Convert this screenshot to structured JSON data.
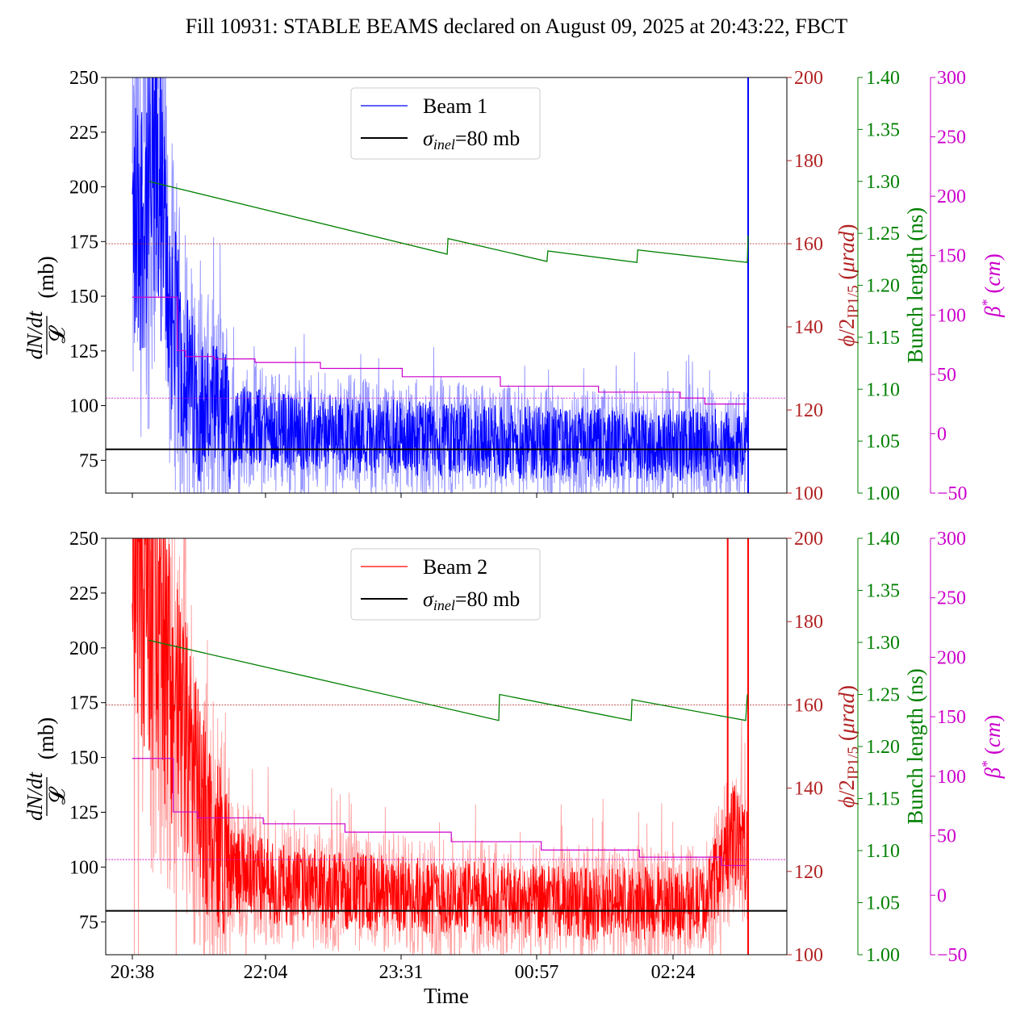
{
  "title": "Fill 10931: STABLE BEAMS declared on August 09, 2025 at 20:43:22, FBCT",
  "colors": {
    "beam1": "#0000ff",
    "beam1_light": "#8080ff",
    "beam2": "#ff0000",
    "beam2_light": "#ff9090",
    "crossing": "#b22222",
    "bunch": "#008000",
    "beta": "#cc00cc",
    "sigma": "#000000"
  },
  "chart_data": [
    {
      "type": "line",
      "panel": "top",
      "x_axis": {
        "label": "",
        "ticks": [
          "20:38",
          "22:04",
          "23:31",
          "00:57",
          "02:24"
        ],
        "tick_labels_visible": false
      },
      "y_left": {
        "label": "dN/dt / 𝓛 (mb)",
        "range": [
          60,
          250
        ],
        "ticks": [
          75,
          100,
          125,
          150,
          175,
          200,
          225,
          250
        ]
      },
      "y_crossing": {
        "label": "ϕ/2IP1/5 (μrad)",
        "range": [
          100,
          200
        ],
        "ticks": [
          100,
          120,
          140,
          160,
          180,
          200
        ]
      },
      "y_bunch": {
        "label": "Bunch length (ns)",
        "range": [
          1.0,
          1.4
        ],
        "ticks": [
          "1.00",
          "1.05",
          "1.10",
          "1.15",
          "1.20",
          "1.25",
          "1.30",
          "1.35",
          "1.40"
        ]
      },
      "y_beta": {
        "label": "β* (cm)",
        "range": [
          -50,
          300
        ],
        "ticks": [
          "−50",
          "0",
          "50",
          "100",
          "150",
          "200",
          "250",
          "300"
        ]
      },
      "legend": {
        "placement": "top-center",
        "entries": [
          "Beam 1",
          "σinel=80 mb"
        ]
      },
      "sigma_inel_mb": 80,
      "crossing_ref_urad": 160,
      "beta_ref_cm": 30,
      "series": [
        {
          "name": "Beam 1",
          "axis": "left",
          "baseline": [
            [
              0,
              180
            ],
            [
              0.2,
              195
            ],
            [
              0.3,
              210
            ],
            [
              0.45,
              150
            ],
            [
              0.6,
              120
            ],
            [
              0.8,
              100
            ],
            [
              1.2,
              92
            ],
            [
              2,
              88
            ],
            [
              3,
              86
            ],
            [
              4,
              84
            ],
            [
              5,
              83
            ],
            [
              6,
              82
            ],
            [
              7.5,
              82
            ]
          ],
          "spike_end": 250
        },
        {
          "name": "Bunch length",
          "axis": "bunch",
          "points": [
            [
              0.2,
              1.3
            ],
            [
              3.85,
              1.23
            ],
            [
              3.86,
              1.245
            ],
            [
              5.07,
              1.223
            ],
            [
              5.08,
              1.233
            ],
            [
              6.17,
              1.222
            ],
            [
              6.18,
              1.234
            ],
            [
              7.52,
              1.222
            ],
            [
              7.53,
              1.248
            ]
          ]
        },
        {
          "name": "Crossing angle",
          "axis": "crossing",
          "points": [
            [
              0,
              160
            ],
            [
              7.5,
              160
            ]
          ]
        },
        {
          "name": "β*",
          "axis": "beta",
          "points": [
            [
              0,
              115
            ],
            [
              0.45,
              115
            ],
            [
              0.55,
              70
            ],
            [
              0.65,
              65
            ],
            [
              1.0,
              63
            ],
            [
              1.5,
              60
            ],
            [
              2.3,
              55
            ],
            [
              3.3,
              48
            ],
            [
              4.5,
              40
            ],
            [
              5.7,
              35
            ],
            [
              6.7,
              30
            ],
            [
              7.0,
              25
            ],
            [
              7.5,
              25
            ]
          ]
        }
      ]
    },
    {
      "type": "line",
      "panel": "bottom",
      "x_axis": {
        "label": "Time",
        "ticks": [
          "20:38",
          "22:04",
          "23:31",
          "00:57",
          "02:24"
        ],
        "tick_labels_visible": true
      },
      "y_left": {
        "label": "dN/dt / 𝓛 (mb)",
        "range": [
          60,
          250
        ],
        "ticks": [
          75,
          100,
          125,
          150,
          175,
          200,
          225,
          250
        ]
      },
      "y_crossing": {
        "label": "ϕ/2IP1/5 (μrad)",
        "range": [
          100,
          200
        ],
        "ticks": [
          100,
          120,
          140,
          160,
          180,
          200
        ]
      },
      "y_bunch": {
        "label": "Bunch length (ns)",
        "range": [
          1.0,
          1.4
        ],
        "ticks": [
          "1.00",
          "1.05",
          "1.10",
          "1.15",
          "1.20",
          "1.25",
          "1.30",
          "1.35",
          "1.40"
        ]
      },
      "y_beta": {
        "label": "β* (cm)",
        "range": [
          -50,
          300
        ],
        "ticks": [
          "−50",
          "0",
          "50",
          "100",
          "150",
          "200",
          "250",
          "300"
        ]
      },
      "legend": {
        "placement": "top-center",
        "entries": [
          "Beam 2",
          "σinel=80 mb"
        ]
      },
      "sigma_inel_mb": 80,
      "crossing_ref_urad": 160,
      "beta_ref_cm": 30,
      "series": [
        {
          "name": "Beam 2",
          "axis": "left",
          "baseline": [
            [
              0,
              240
            ],
            [
              0.3,
              210
            ],
            [
              0.6,
              165
            ],
            [
              0.9,
              120
            ],
            [
              1.2,
              100
            ],
            [
              1.8,
              92
            ],
            [
              3,
              88
            ],
            [
              4,
              86
            ],
            [
              5,
              84
            ],
            [
              6,
              83
            ],
            [
              7.0,
              84
            ],
            [
              7.2,
              100
            ],
            [
              7.35,
              115
            ],
            [
              7.45,
              110
            ],
            [
              7.5,
              105
            ]
          ],
          "spike_end": 250
        },
        {
          "name": "Bunch length",
          "axis": "bunch",
          "points": [
            [
              0.2,
              1.302
            ],
            [
              4.48,
              1.225
            ],
            [
              4.49,
              1.25
            ],
            [
              6.1,
              1.225
            ],
            [
              6.11,
              1.245
            ],
            [
              7.5,
              1.225
            ],
            [
              7.52,
              1.25
            ]
          ]
        },
        {
          "name": "Crossing angle",
          "axis": "crossing",
          "points": [
            [
              0,
              160
            ],
            [
              7.5,
              160
            ]
          ]
        },
        {
          "name": "β*",
          "axis": "beta",
          "points": [
            [
              0,
              115
            ],
            [
              0.45,
              115
            ],
            [
              0.5,
              70
            ],
            [
              0.8,
              65
            ],
            [
              1.6,
              60
            ],
            [
              2.6,
              53
            ],
            [
              3.9,
              45
            ],
            [
              5.0,
              38
            ],
            [
              6.2,
              32
            ],
            [
              7.2,
              25
            ],
            [
              7.5,
              25
            ]
          ]
        }
      ]
    }
  ]
}
